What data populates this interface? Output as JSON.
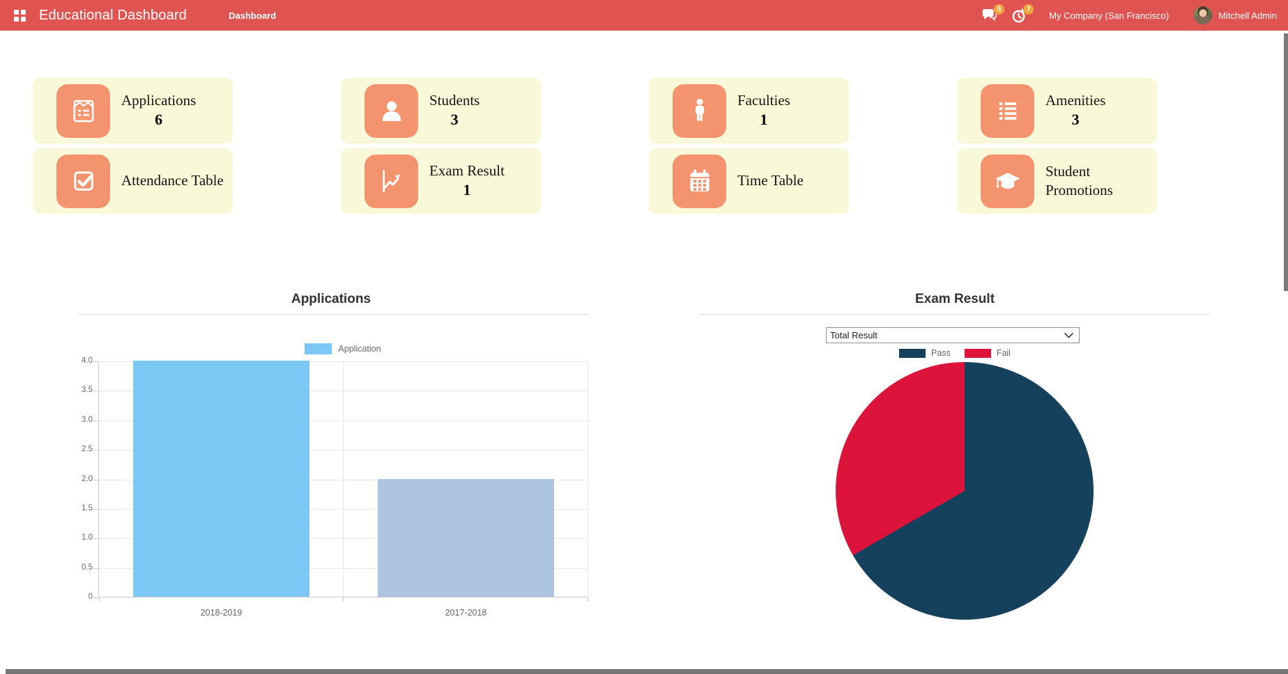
{
  "header": {
    "app_title": "Educational Dashboard",
    "menu": "Dashboard",
    "message_badge": "5",
    "activity_badge": "7",
    "company": "My Company (San Francisco)",
    "user_name": "Mitchell Admin"
  },
  "colors": {
    "header_bg": "#df5451",
    "badge_bg": "#f0a63f",
    "card_bg": "#f9f8d9",
    "card_icon_bg": "#f4946e",
    "bar_primary": "#7cc7f3",
    "bar_secondary": "#adc5e1",
    "pie_pass": "#15415c",
    "pie_fail": "#dc143c"
  },
  "cards": [
    {
      "label": "Applications",
      "value": "6"
    },
    {
      "label": "Students",
      "value": "3"
    },
    {
      "label": "Faculties",
      "value": "1"
    },
    {
      "label": "Amenities",
      "value": "3"
    },
    {
      "label": "Attendance Table",
      "value": ""
    },
    {
      "label": "Exam Result",
      "value": "1"
    },
    {
      "label": "Time Table",
      "value": ""
    },
    {
      "label": "Student Promotions",
      "value": ""
    }
  ],
  "chart_data": [
    {
      "type": "bar",
      "title": "Applications",
      "legend": [
        {
          "label": "Application",
          "color": "#7cc7f3"
        }
      ],
      "categories": [
        "2018-2019",
        "2017-2018"
      ],
      "values": [
        4,
        2
      ],
      "bar_colors": [
        "#7cc7f3",
        "#adc5e1"
      ],
      "xlabel": "",
      "ylabel": "",
      "ylim": [
        0,
        4
      ],
      "grid": true,
      "legend_position": "top",
      "yticks": [
        {
          "value": 0,
          "label": "0"
        },
        {
          "value": 0.5,
          "label": "0.5"
        },
        {
          "value": 1,
          "label": "1.0"
        },
        {
          "value": 1.5,
          "label": "1.5"
        },
        {
          "value": 2,
          "label": "2.0"
        },
        {
          "value": 2.5,
          "label": "2.5"
        },
        {
          "value": 3,
          "label": "3.0"
        },
        {
          "value": 3.5,
          "label": "3.5"
        },
        {
          "value": 4,
          "label": "4.0"
        }
      ]
    },
    {
      "type": "pie",
      "title": "Exam Result",
      "filter": {
        "selected": "Total Result"
      },
      "series": [
        {
          "name": "Pass",
          "value": 2,
          "color": "#15415c"
        },
        {
          "name": "Fail",
          "value": 1,
          "color": "#dc143c"
        }
      ],
      "legend_position": "top"
    }
  ]
}
